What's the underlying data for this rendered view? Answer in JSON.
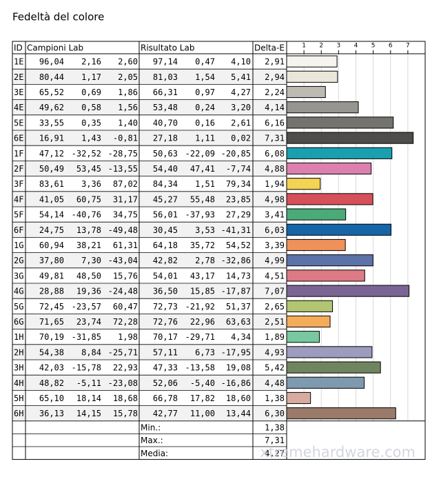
{
  "title": "Fedeltà del colore",
  "table": {
    "headers": [
      "ID",
      "Campioni Lab",
      "Risultato Lab",
      "Delta-E"
    ],
    "rows": [
      {
        "id": "1E",
        "sample": [
          "96,04",
          "2,16",
          "2,60"
        ],
        "result": [
          "97,14",
          "0,47",
          "4,10"
        ],
        "delta_e": {
          "value": 2.91,
          "label": "2,91"
        },
        "color": "#f6f4ef"
      },
      {
        "id": "2E",
        "sample": [
          "80,44",
          "1,17",
          "2,05"
        ],
        "result": [
          "81,03",
          "1,54",
          "5,41"
        ],
        "delta_e": {
          "value": 2.94,
          "label": "2,94"
        },
        "color": "#ebe6da"
      },
      {
        "id": "3E",
        "sample": [
          "65,52",
          "0,69",
          "1,86"
        ],
        "result": [
          "66,31",
          "0,97",
          "4,27"
        ],
        "delta_e": {
          "value": 2.24,
          "label": "2,24"
        },
        "color": "#bdbab3"
      },
      {
        "id": "4E",
        "sample": [
          "49,62",
          "0,58",
          "1,56"
        ],
        "result": [
          "53,48",
          "0,24",
          "3,20"
        ],
        "delta_e": {
          "value": 4.14,
          "label": "4,14"
        },
        "color": "#979590"
      },
      {
        "id": "5E",
        "sample": [
          "33,55",
          "0,35",
          "1,40"
        ],
        "result": [
          "40,70",
          "0,16",
          "2,61"
        ],
        "delta_e": {
          "value": 6.16,
          "label": "6,16"
        },
        "color": "#74736f"
      },
      {
        "id": "6E",
        "sample": [
          "16,91",
          "1,43",
          "-0,81"
        ],
        "result": [
          "27,18",
          "1,11",
          "0,02"
        ],
        "delta_e": {
          "value": 7.31,
          "label": "7,31"
        },
        "color": "#4e4d4b"
      },
      {
        "id": "1F",
        "sample": [
          "47,12",
          "-32,52",
          "-28,75"
        ],
        "result": [
          "50,63",
          "-22,09",
          "-20,85"
        ],
        "delta_e": {
          "value": 6.08,
          "label": "6,08"
        },
        "color": "#1a9faf"
      },
      {
        "id": "2F",
        "sample": [
          "50,49",
          "53,45",
          "-13,55"
        ],
        "result": [
          "54,40",
          "47,41",
          "-7,74"
        ],
        "delta_e": {
          "value": 4.88,
          "label": "4,88"
        },
        "color": "#dd80b0"
      },
      {
        "id": "3F",
        "sample": [
          "83,61",
          "3,36",
          "87,02"
        ],
        "result": [
          "84,34",
          "1,51",
          "79,34"
        ],
        "delta_e": {
          "value": 1.94,
          "label": "1,94"
        },
        "color": "#f3d352"
      },
      {
        "id": "4F",
        "sample": [
          "41,05",
          "60,75",
          "31,17"
        ],
        "result": [
          "45,27",
          "55,48",
          "23,85"
        ],
        "delta_e": {
          "value": 4.98,
          "label": "4,98"
        },
        "color": "#d4505a"
      },
      {
        "id": "5F",
        "sample": [
          "54,14",
          "-40,76",
          "34,75"
        ],
        "result": [
          "56,01",
          "-37,93",
          "27,29"
        ],
        "delta_e": {
          "value": 3.41,
          "label": "3,41"
        },
        "color": "#4aab78"
      },
      {
        "id": "6F",
        "sample": [
          "24,75",
          "13,78",
          "-49,48"
        ],
        "result": [
          "30,45",
          "3,53",
          "-41,31"
        ],
        "delta_e": {
          "value": 6.03,
          "label": "6,03"
        },
        "color": "#1565a8"
      },
      {
        "id": "1G",
        "sample": [
          "60,94",
          "38,21",
          "61,31"
        ],
        "result": [
          "64,18",
          "35,72",
          "54,52"
        ],
        "delta_e": {
          "value": 3.39,
          "label": "3,39"
        },
        "color": "#ef9158"
      },
      {
        "id": "2G",
        "sample": [
          "37,80",
          "7,30",
          "-43,04"
        ],
        "result": [
          "42,82",
          "2,78",
          "-32,86"
        ],
        "delta_e": {
          "value": 4.99,
          "label": "4,99"
        },
        "color": "#5d72a8"
      },
      {
        "id": "3G",
        "sample": [
          "49,81",
          "48,50",
          "15,76"
        ],
        "result": [
          "54,01",
          "43,17",
          "14,73"
        ],
        "delta_e": {
          "value": 4.51,
          "label": "4,51"
        },
        "color": "#dc7a85"
      },
      {
        "id": "4G",
        "sample": [
          "28,88",
          "19,36",
          "-24,48"
        ],
        "result": [
          "36,50",
          "15,85",
          "-17,87"
        ],
        "delta_e": {
          "value": 7.07,
          "label": "7,07"
        },
        "color": "#7b6595"
      },
      {
        "id": "5G",
        "sample": [
          "72,45",
          "-23,57",
          "60,47"
        ],
        "result": [
          "72,73",
          "-21,92",
          "51,37"
        ],
        "delta_e": {
          "value": 2.65,
          "label": "2,65"
        },
        "color": "#b2c572"
      },
      {
        "id": "6G",
        "sample": [
          "71,65",
          "23,74",
          "72,28"
        ],
        "result": [
          "72,76",
          "22,96",
          "63,63"
        ],
        "delta_e": {
          "value": 2.51,
          "label": "2,51"
        },
        "color": "#f5ac5a"
      },
      {
        "id": "1H",
        "sample": [
          "70,19",
          "-31,85",
          "1,98"
        ],
        "result": [
          "70,17",
          "-29,71",
          "4,34"
        ],
        "delta_e": {
          "value": 1.89,
          "label": "1,89"
        },
        "color": "#78c8a0"
      },
      {
        "id": "2H",
        "sample": [
          "54,38",
          "8,84",
          "-25,71"
        ],
        "result": [
          "57,11",
          "6,73",
          "-17,95"
        ],
        "delta_e": {
          "value": 4.93,
          "label": "4,93"
        },
        "color": "#9d9bbe"
      },
      {
        "id": "3H",
        "sample": [
          "42,03",
          "-15,78",
          "22,93"
        ],
        "result": [
          "47,33",
          "-13,58",
          "19,08"
        ],
        "delta_e": {
          "value": 5.42,
          "label": "5,42"
        },
        "color": "#6f8560"
      },
      {
        "id": "4H",
        "sample": [
          "48,82",
          "-5,11",
          "-23,08"
        ],
        "result": [
          "52,06",
          "-5,40",
          "-16,86"
        ],
        "delta_e": {
          "value": 4.48,
          "label": "4,48"
        },
        "color": "#7f9aaf"
      },
      {
        "id": "5H",
        "sample": [
          "65,10",
          "18,14",
          "18,68"
        ],
        "result": [
          "66,78",
          "17,82",
          "18,60"
        ],
        "delta_e": {
          "value": 1.38,
          "label": "1,38"
        },
        "color": "#d8aba1"
      },
      {
        "id": "6H",
        "sample": [
          "36,13",
          "14,15",
          "15,78"
        ],
        "result": [
          "42,77",
          "11,00",
          "13,44"
        ],
        "delta_e": {
          "value": 6.3,
          "label": "6,30"
        },
        "color": "#9a7a6a"
      }
    ],
    "summary": [
      {
        "label": "Min.:",
        "value": "1,38"
      },
      {
        "label": "Max.:",
        "value": "7,31"
      },
      {
        "label": "Media:",
        "value": "4,27"
      }
    ]
  },
  "axis": {
    "xlim": [
      0,
      8
    ],
    "xticks": [
      1,
      2,
      3,
      4,
      5,
      6,
      7
    ],
    "grid": true
  },
  "watermark": "xtremehardware.com"
}
